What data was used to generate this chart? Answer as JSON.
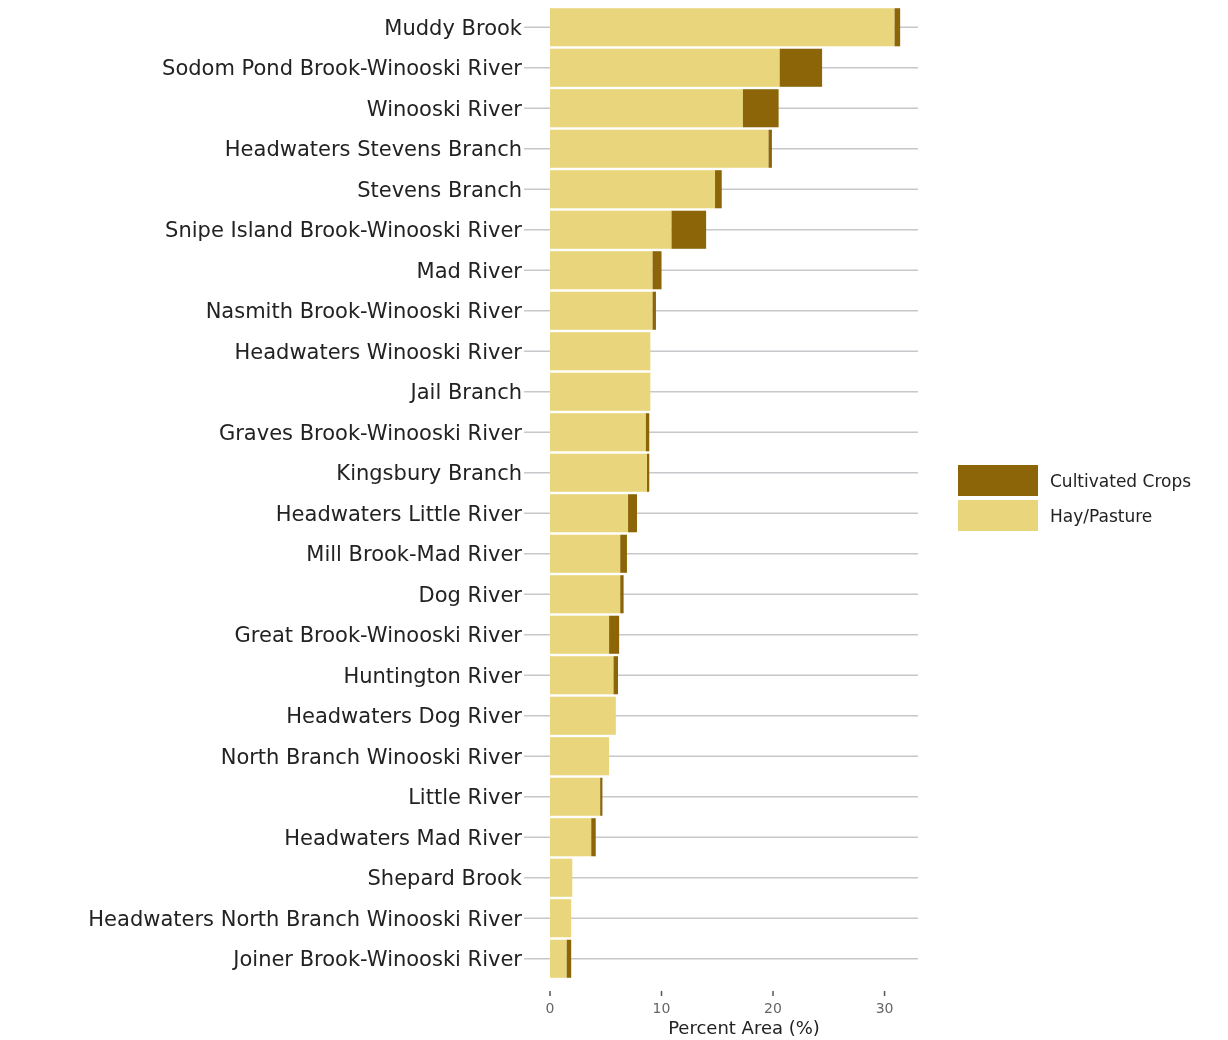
{
  "chart_data": {
    "type": "bar",
    "orientation": "horizontal",
    "stacked": true,
    "xlabel": "Percent Area (%)",
    "xlim": [
      0,
      33
    ],
    "xticks": [
      0,
      10,
      20,
      30
    ],
    "grid": "y",
    "legend": "right",
    "categories": [
      "Muddy Brook",
      "Sodom Pond Brook-Winooski River",
      "Winooski River",
      "Headwaters Stevens Branch",
      "Stevens Branch",
      "Snipe Island Brook-Winooski River",
      "Mad River",
      "Nasmith Brook-Winooski River",
      "Headwaters Winooski River",
      "Jail Branch",
      "Graves Brook-Winooski River",
      "Kingsbury Branch",
      "Headwaters Little River",
      "Mill Brook-Mad River",
      "Dog River",
      "Great Brook-Winooski River",
      "Huntington River",
      "Headwaters Dog River",
      "North Branch Winooski River",
      "Little River",
      "Headwaters Mad River",
      "Shepard Brook",
      "Headwaters North Branch Winooski River",
      "Joiner Brook-Winooski River"
    ],
    "series": [
      {
        "name": "Hay/Pasture",
        "color": "#e8d57c",
        "values": [
          30.9,
          20.6,
          17.3,
          19.6,
          14.8,
          10.9,
          9.2,
          9.2,
          9.0,
          9.0,
          8.6,
          8.7,
          7.0,
          6.3,
          6.3,
          5.3,
          5.7,
          5.9,
          5.3,
          4.5,
          3.7,
          2.0,
          1.9,
          1.5
        ]
      },
      {
        "name": "Cultivated Crops",
        "color": "#8b6508",
        "values": [
          0.5,
          3.8,
          3.2,
          0.3,
          0.6,
          3.1,
          0.8,
          0.3,
          0,
          0,
          0.3,
          0.2,
          0.8,
          0.6,
          0.3,
          0.9,
          0.4,
          0,
          0,
          0.2,
          0.4,
          0,
          0,
          0.4
        ]
      }
    ]
  }
}
